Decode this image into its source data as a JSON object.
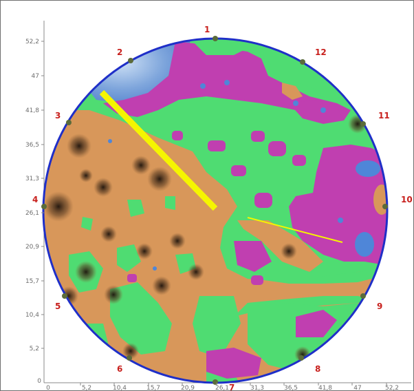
{
  "plot": {
    "y_ticks": [
      "52,2",
      "47",
      "41,8",
      "36,5",
      "31,3",
      "26,1",
      "20,9",
      "15,7",
      "10,4",
      "5,2",
      "0"
    ],
    "x_ticks": [
      "0",
      "5,2",
      "10,4",
      "15,7",
      "20,9",
      "26,1",
      "31,3",
      "36,5",
      "41,8",
      "47",
      "52,2"
    ],
    "positions": [
      "1",
      "2",
      "3",
      "4",
      "5",
      "6",
      "7",
      "8",
      "9",
      "10",
      "11",
      "12"
    ]
  },
  "colors": {
    "circle": "#1f2fc8",
    "orange": "#d8975a",
    "green": "#4fdc72",
    "magenta": "#c03fb0",
    "blue": "#4f86d8",
    "dark": "#3a2a1e",
    "yellow_line": "#f5f500"
  }
}
